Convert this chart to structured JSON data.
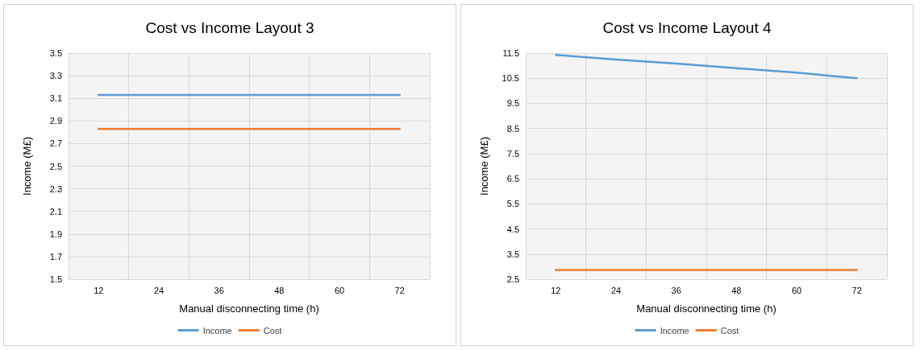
{
  "chart_data": [
    {
      "type": "line",
      "title": "Cost vs Income Layout 3",
      "xlabel": "Manual disconnecting time (h)",
      "ylabel": "Income (M£)",
      "categories": [
        "12",
        "24",
        "36",
        "48",
        "60",
        "72"
      ],
      "series": [
        {
          "name": "Income",
          "color": "#5b9bd5",
          "values": [
            3.13,
            3.13,
            3.13,
            3.13,
            3.13,
            3.13
          ]
        },
        {
          "name": "Cost",
          "color": "#ed7d31",
          "values": [
            2.83,
            2.83,
            2.83,
            2.83,
            2.83,
            2.83
          ]
        }
      ],
      "ylim": [
        1.5,
        3.5
      ],
      "yticks": [
        1.5,
        1.7,
        1.9,
        2.1,
        2.3,
        2.5,
        2.7,
        2.9,
        3.1,
        3.3,
        3.5
      ],
      "grid": true,
      "legend": "bottom",
      "marker": "none",
      "line_style": "solid"
    },
    {
      "type": "line",
      "title": "Cost vs Income Layout 4",
      "xlabel": "Manual disconnecting time (h)",
      "ylabel": "Income (M£)",
      "categories": [
        "12",
        "24",
        "36",
        "48",
        "60",
        "72"
      ],
      "series": [
        {
          "name": "Income",
          "color": "#5b9bd5",
          "values": [
            11.43,
            11.24,
            11.08,
            10.9,
            10.72,
            10.5
          ]
        },
        {
          "name": "Cost",
          "color": "#ed7d31",
          "values": [
            2.87,
            2.87,
            2.87,
            2.87,
            2.87,
            2.87
          ]
        }
      ],
      "ylim": [
        2.5,
        11.5
      ],
      "yticks": [
        2.5,
        3.5,
        4.5,
        5.5,
        6.5,
        7.5,
        8.5,
        9.5,
        10.5,
        11.5
      ],
      "grid": true,
      "legend": "bottom",
      "marker": "none",
      "line_style": "solid"
    }
  ]
}
